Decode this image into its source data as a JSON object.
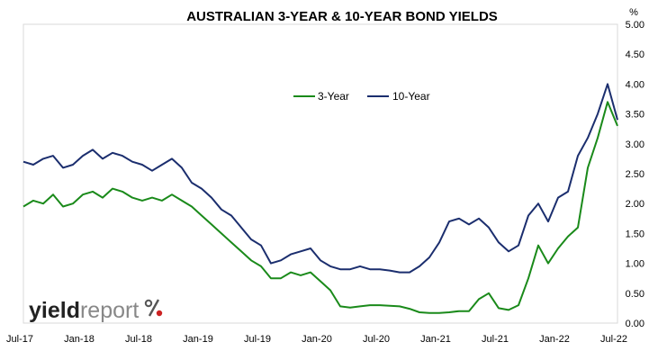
{
  "chart_data": {
    "type": "line",
    "title": "AUSTRALIAN 3-YEAR & 10-YEAR BOND YIELDS",
    "unit_label": "%",
    "xlabel": "",
    "ylabel": "",
    "ylim": [
      0,
      5
    ],
    "y_ticks": [
      "0.00",
      "0.50",
      "1.00",
      "1.50",
      "2.00",
      "2.50",
      "3.00",
      "3.50",
      "4.00",
      "4.50",
      "5.00"
    ],
    "x_ticks": [
      "Jul-17",
      "Jan-18",
      "Jul-18",
      "Jan-19",
      "Jul-19",
      "Jan-20",
      "Jul-20",
      "Jan-21",
      "Jul-21",
      "Jan-22",
      "Jul-22"
    ],
    "legend_position": "top-center",
    "grid": false,
    "x": [
      "Jul-17",
      "Aug-17",
      "Sep-17",
      "Oct-17",
      "Nov-17",
      "Dec-17",
      "Jan-18",
      "Feb-18",
      "Mar-18",
      "Apr-18",
      "May-18",
      "Jun-18",
      "Jul-18",
      "Aug-18",
      "Sep-18",
      "Oct-18",
      "Nov-18",
      "Dec-18",
      "Jan-19",
      "Feb-19",
      "Mar-19",
      "Apr-19",
      "May-19",
      "Jun-19",
      "Jul-19",
      "Aug-19",
      "Sep-19",
      "Oct-19",
      "Nov-19",
      "Dec-19",
      "Jan-20",
      "Feb-20",
      "Mar-20",
      "Apr-20",
      "May-20",
      "Jun-20",
      "Jul-20",
      "Aug-20",
      "Sep-20",
      "Oct-20",
      "Nov-20",
      "Dec-20",
      "Jan-21",
      "Feb-21",
      "Mar-21",
      "Apr-21",
      "May-21",
      "Jun-21",
      "Jul-21",
      "Aug-21",
      "Sep-21",
      "Oct-21",
      "Nov-21",
      "Dec-21",
      "Jan-22",
      "Feb-22",
      "Mar-22",
      "Apr-22",
      "May-22",
      "Jun-22",
      "Jul-22"
    ],
    "series": [
      {
        "name": "3-Year",
        "color": "#1a8a1a",
        "values": [
          1.95,
          2.05,
          2.0,
          2.15,
          1.95,
          2.0,
          2.15,
          2.2,
          2.1,
          2.25,
          2.2,
          2.1,
          2.05,
          2.1,
          2.05,
          2.15,
          2.05,
          1.95,
          1.8,
          1.65,
          1.5,
          1.35,
          1.2,
          1.05,
          0.95,
          0.75,
          0.75,
          0.85,
          0.8,
          0.85,
          0.7,
          0.55,
          0.28,
          0.26,
          0.28,
          0.3,
          0.3,
          0.29,
          0.28,
          0.24,
          0.18,
          0.17,
          0.17,
          0.18,
          0.2,
          0.2,
          0.4,
          0.5,
          0.25,
          0.22,
          0.3,
          0.75,
          1.3,
          1.0,
          1.25,
          1.45,
          1.6,
          2.6,
          3.1,
          3.7,
          3.3
        ]
      },
      {
        "name": "10-Year",
        "color": "#1b2e6e",
        "values": [
          2.7,
          2.65,
          2.75,
          2.8,
          2.6,
          2.65,
          2.8,
          2.9,
          2.75,
          2.85,
          2.8,
          2.7,
          2.65,
          2.55,
          2.65,
          2.75,
          2.6,
          2.35,
          2.25,
          2.1,
          1.9,
          1.8,
          1.6,
          1.4,
          1.3,
          1.0,
          1.05,
          1.15,
          1.2,
          1.25,
          1.05,
          0.95,
          0.9,
          0.9,
          0.95,
          0.9,
          0.9,
          0.88,
          0.85,
          0.85,
          0.95,
          1.1,
          1.35,
          1.7,
          1.75,
          1.65,
          1.75,
          1.6,
          1.35,
          1.2,
          1.3,
          1.8,
          2.0,
          1.7,
          2.1,
          2.2,
          2.8,
          3.1,
          3.5,
          4.0,
          3.4
        ]
      }
    ],
    "logo": {
      "word1": "yield",
      "word2": "report",
      "symbol": "%"
    }
  }
}
